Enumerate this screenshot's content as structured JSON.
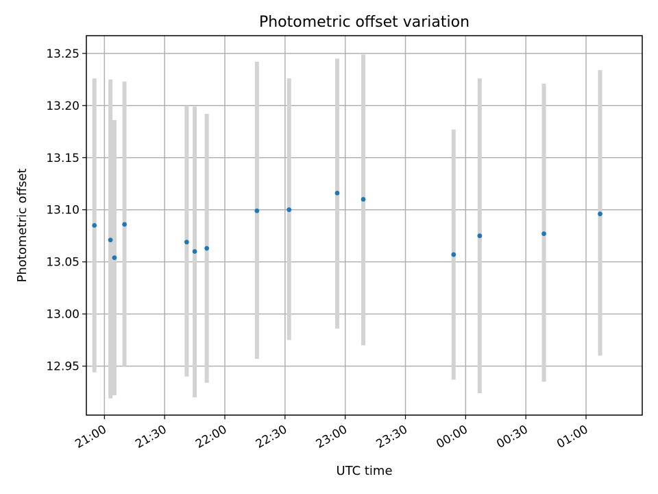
{
  "chart_data": {
    "type": "scatter",
    "title": "Photometric offset variation",
    "xlabel": "UTC time",
    "ylabel": "Photometric offset",
    "x_axis_kind": "time (HH:MM, UTC)",
    "xlim": [
      "20:51",
      "01:28"
    ],
    "ylim": [
      12.903,
      13.267
    ],
    "xticks": [
      "21:00",
      "21:30",
      "22:00",
      "22:30",
      "23:00",
      "23:30",
      "00:00",
      "00:30",
      "01:00"
    ],
    "yticks": [
      "12.95",
      "13.00",
      "13.05",
      "13.10",
      "13.15",
      "13.20",
      "13.25"
    ],
    "grid": true,
    "marker_color": "#1f77b4",
    "errorbar_color": "#d3d3d3",
    "points": [
      {
        "x": "20:55",
        "y": 13.085,
        "ylow": 12.944,
        "yhigh": 13.226
      },
      {
        "x": "21:03",
        "y": 13.071,
        "ylow": 12.919,
        "yhigh": 13.225
      },
      {
        "x": "21:05",
        "y": 13.054,
        "ylow": 12.922,
        "yhigh": 13.186
      },
      {
        "x": "21:10",
        "y": 13.086,
        "ylow": 12.95,
        "yhigh": 13.223
      },
      {
        "x": "21:41",
        "y": 13.069,
        "ylow": 12.94,
        "yhigh": 13.2
      },
      {
        "x": "21:45",
        "y": 13.06,
        "ylow": 12.92,
        "yhigh": 13.199
      },
      {
        "x": "21:51",
        "y": 13.063,
        "ylow": 12.934,
        "yhigh": 13.192
      },
      {
        "x": "22:16",
        "y": 13.099,
        "ylow": 12.957,
        "yhigh": 13.242
      },
      {
        "x": "22:32",
        "y": 13.1,
        "ylow": 12.975,
        "yhigh": 13.226
      },
      {
        "x": "22:56",
        "y": 13.116,
        "ylow": 12.986,
        "yhigh": 13.245
      },
      {
        "x": "23:09",
        "y": 13.11,
        "ylow": 12.97,
        "yhigh": 13.249
      },
      {
        "x": "23:54",
        "y": 13.057,
        "ylow": 12.937,
        "yhigh": 13.177
      },
      {
        "x": "00:07",
        "y": 13.075,
        "ylow": 12.924,
        "yhigh": 13.226
      },
      {
        "x": "00:39",
        "y": 13.077,
        "ylow": 12.935,
        "yhigh": 13.221
      },
      {
        "x": "01:07",
        "y": 13.096,
        "ylow": 12.96,
        "yhigh": 13.234
      }
    ]
  }
}
